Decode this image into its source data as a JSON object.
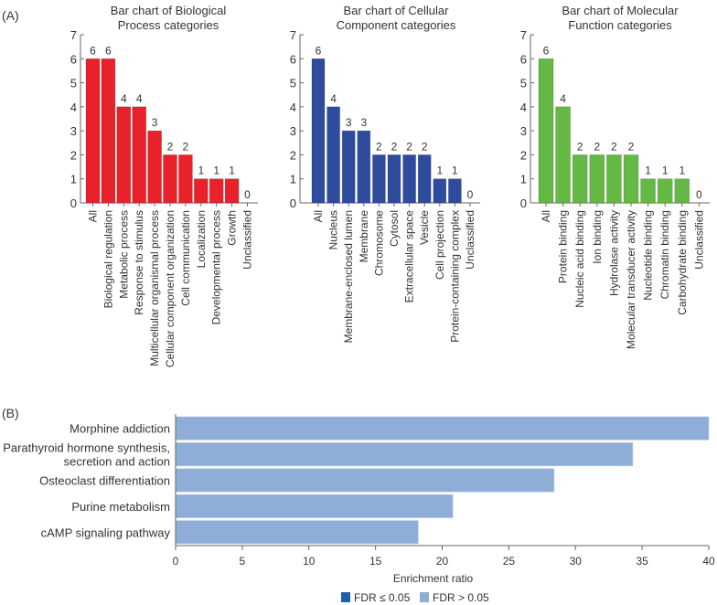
{
  "panel_labels": {
    "a": "(A)",
    "b": "(B)"
  },
  "colors": {
    "biological_process": "#e8212b",
    "cellular_component": "#2e4b9e",
    "molecular_function": "#63b944",
    "enrichment_bar": "#8eadd7",
    "fdr_significant": "#1f5fa8",
    "fdr_not_significant": "#8eadd7",
    "axis": "#666666",
    "text": "#333333"
  },
  "chart_data": [
    {
      "type": "bar",
      "title": "Bar chart of Biological Process categories",
      "title_lines": [
        "Bar chart of Biological",
        "Process categories"
      ],
      "xlabel": "",
      "ylabel": "",
      "ylim": [
        0,
        7
      ],
      "yticks": [
        0,
        1,
        2,
        3,
        4,
        5,
        6,
        7
      ],
      "grid": false,
      "color_key": "biological_process",
      "categories": [
        "All",
        "Biological regulation",
        "Metabolic process",
        "Response to stimulus",
        "Multicellular organismal process",
        "Cellular component organization",
        "Cell communication",
        "Localization",
        "Developmental process",
        "Growth",
        "Unclassified"
      ],
      "values": [
        6,
        6,
        4,
        4,
        3,
        2,
        2,
        1,
        1,
        1,
        0
      ]
    },
    {
      "type": "bar",
      "title": "Bar chart of Cellular Component categories",
      "title_lines": [
        "Bar chart of Cellular",
        "Component categories"
      ],
      "xlabel": "",
      "ylabel": "",
      "ylim": [
        0,
        7
      ],
      "yticks": [
        0,
        1,
        2,
        3,
        4,
        5,
        6,
        7
      ],
      "grid": false,
      "color_key": "cellular_component",
      "categories": [
        "All",
        "Nucleus",
        "Membrane-enclosed lumen",
        "Membrane",
        "Chromosome",
        "Cytosol",
        "Extracellular space",
        "Vesicle",
        "Cell projection",
        "Protein-containing complex",
        "Unclassified"
      ],
      "values": [
        6,
        4,
        3,
        3,
        2,
        2,
        2,
        2,
        1,
        1,
        0
      ]
    },
    {
      "type": "bar",
      "title": "Bar chart of Molecular Function categories",
      "title_lines": [
        "Bar chart of Molecular",
        "Function categories"
      ],
      "xlabel": "",
      "ylabel": "",
      "ylim": [
        0,
        7
      ],
      "yticks": [
        0,
        1,
        2,
        3,
        4,
        5,
        6,
        7
      ],
      "grid": false,
      "color_key": "molecular_function",
      "categories": [
        "All",
        "Protein binding",
        "Nucleic acid binding",
        "Ion binding",
        "Hydrolase activity",
        "Molecular transducer activity",
        "Nucleotide binding",
        "Chromatin binding",
        "Carbohydrate binding",
        "Unclassified"
      ],
      "values": [
        6,
        4,
        2,
        2,
        2,
        2,
        1,
        1,
        1,
        0
      ]
    },
    {
      "type": "bar",
      "orientation": "horizontal",
      "title": "",
      "xlabel": "Enrichment ratio",
      "ylabel": "",
      "xlim": [
        0,
        40
      ],
      "xticks": [
        0,
        5,
        10,
        15,
        20,
        25,
        30,
        35,
        40
      ],
      "grid": false,
      "color_key": "enrichment_bar",
      "categories": [
        [
          "Morphine addiction"
        ],
        [
          "Parathyroid hormone synthesis,",
          "secretion and action"
        ],
        [
          "Osteoclast differentiation"
        ],
        [
          "Purine metabolism"
        ],
        [
          "cAMP signaling pathway"
        ]
      ],
      "category_names": [
        "Morphine addiction",
        "Parathyroid hormone synthesis, secretion and action",
        "Osteoclast differentiation",
        "Purine metabolism",
        "cAMP signaling pathway"
      ],
      "values": [
        40.0,
        34.3,
        28.4,
        20.8,
        18.2
      ],
      "legend": {
        "placement": "bottom-center",
        "entries": [
          {
            "label": "FDR ≤ 0.05",
            "color_key": "fdr_significant"
          },
          {
            "label": "FDR > 0.05",
            "color_key": "fdr_not_significant"
          }
        ]
      }
    }
  ]
}
